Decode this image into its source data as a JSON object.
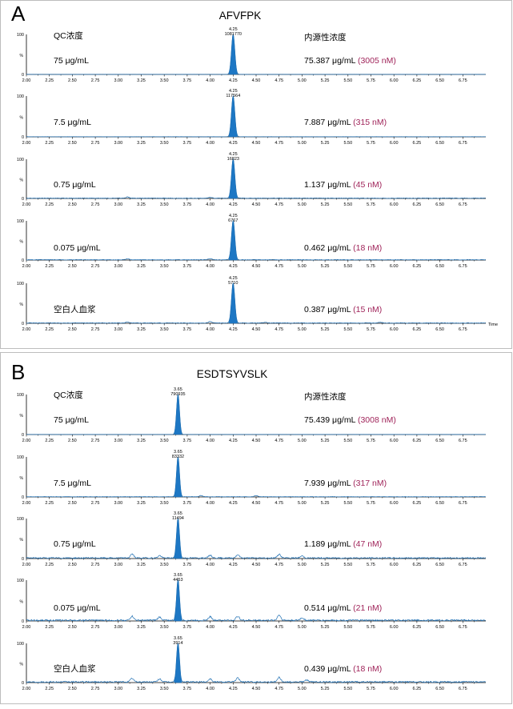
{
  "colors": {
    "trace": "#1e6fb3",
    "fill": "#1d77c4",
    "axis": "#000000",
    "nm_text": "#a0245a",
    "frame": "#bdbdbd"
  },
  "x_tick_labels": [
    "2.00",
    "2.25",
    "2.50",
    "2.75",
    "3.00",
    "3.25",
    "3.50",
    "3.75",
    "4.00",
    "4.25",
    "4.50",
    "4.75",
    "5.00",
    "5.25",
    "5.50",
    "5.75",
    "6.00",
    "6.25",
    "6.50",
    "6.75"
  ],
  "time_label": "Time",
  "y_labels": {
    "top": "100",
    "percent": "%",
    "zero": "0"
  },
  "panel_A": {
    "letter": "A",
    "title": "AFVFPK",
    "qc_header": "QC浓度",
    "endo_header": "内源性浓度"
  },
  "panel_B": {
    "letter": "B",
    "title": "ESDTSYVSLK",
    "qc_header": "QC浓度",
    "endo_header": "内源性浓度"
  },
  "chart_data": [
    {
      "type": "line",
      "title": "AFVFPK",
      "xlabel": "Time",
      "xlim": [
        2.0,
        7.0
      ],
      "ylim": [
        0,
        100
      ],
      "series": [
        {
          "qc": "75 μg/mL",
          "peak_rt": "4.25",
          "peak_area": "1081770",
          "endo_conc": "75.387 μg/mL",
          "endo_nm": "(3005 nM)",
          "noise": 0.3,
          "bumps": []
        },
        {
          "qc": "7.5 μg/mL",
          "peak_rt": "4.25",
          "peak_area": "117564",
          "endo_conc": "7.887 μg/mL",
          "endo_nm": "(315 nM)",
          "noise": 0.5,
          "bumps": []
        },
        {
          "qc": "0.75 μg/mL",
          "peak_rt": "4.25",
          "peak_area": "16823",
          "endo_conc": "1.137 μg/mL",
          "endo_nm": "(45 nM)",
          "noise": 1.5,
          "bumps": [
            [
              3.1,
              3
            ],
            [
              4.0,
              2
            ]
          ]
        },
        {
          "qc": "0.075 μg/mL",
          "peak_rt": "4.25",
          "peak_area": "6767",
          "endo_conc": "0.462 μg/mL",
          "endo_nm": "(18 nM)",
          "noise": 1.5,
          "bumps": [
            [
              3.1,
              3
            ],
            [
              4.0,
              3
            ]
          ]
        },
        {
          "qc": "空白人血浆",
          "peak_rt": "4.25",
          "peak_area": "5710",
          "endo_conc": "0.387 μg/mL",
          "endo_nm": "(15 nM)",
          "noise": 1.5,
          "bumps": [
            [
              3.1,
              3
            ],
            [
              4.0,
              4
            ],
            [
              4.6,
              2
            ],
            [
              5.85,
              2
            ]
          ]
        }
      ]
    },
    {
      "type": "line",
      "title": "ESDTSYVSLK",
      "xlabel": "Time",
      "xlim": [
        2.0,
        7.0
      ],
      "ylim": [
        0,
        100
      ],
      "series": [
        {
          "qc": "75 μg/mL",
          "peak_rt": "3.65",
          "peak_area": "790935",
          "endo_conc": "75.439 μg/mL",
          "endo_nm": "(3008 nM)",
          "noise": 0.4,
          "bumps": []
        },
        {
          "qc": "7.5 μg/mL",
          "peak_rt": "3.65",
          "peak_area": "83332",
          "endo_conc": "7.939 μg/mL",
          "endo_nm": "(317 nM)",
          "noise": 1,
          "bumps": [
            [
              3.9,
              3
            ],
            [
              4.5,
              3
            ]
          ]
        },
        {
          "qc": "0.75 μg/mL",
          "peak_rt": "3.65",
          "peak_area": "11494",
          "endo_conc": "1.189 μg/mL",
          "endo_nm": "(47 nM)",
          "noise": 3,
          "bumps": [
            [
              3.15,
              10
            ],
            [
              3.45,
              6
            ],
            [
              4.0,
              7
            ],
            [
              4.3,
              8
            ],
            [
              4.75,
              9
            ],
            [
              5.0,
              5
            ]
          ]
        },
        {
          "qc": "0.075 μg/mL",
          "peak_rt": "3.65",
          "peak_area": "4453",
          "endo_conc": "0.514 μg/mL",
          "endo_nm": "(21 nM)",
          "noise": 3.5,
          "bumps": [
            [
              3.15,
              10
            ],
            [
              3.45,
              8
            ],
            [
              4.0,
              9
            ],
            [
              4.3,
              10
            ],
            [
              4.75,
              13
            ],
            [
              5.0,
              6
            ]
          ]
        },
        {
          "qc": "空白人血浆",
          "peak_rt": "3.65",
          "peak_area": "3914",
          "endo_conc": "0.439 μg/mL",
          "endo_nm": "(18 nM)",
          "noise": 3.5,
          "bumps": [
            [
              3.15,
              9
            ],
            [
              3.45,
              8
            ],
            [
              4.0,
              8
            ],
            [
              4.3,
              10
            ],
            [
              4.75,
              12
            ],
            [
              5.05,
              5
            ]
          ]
        }
      ]
    }
  ]
}
